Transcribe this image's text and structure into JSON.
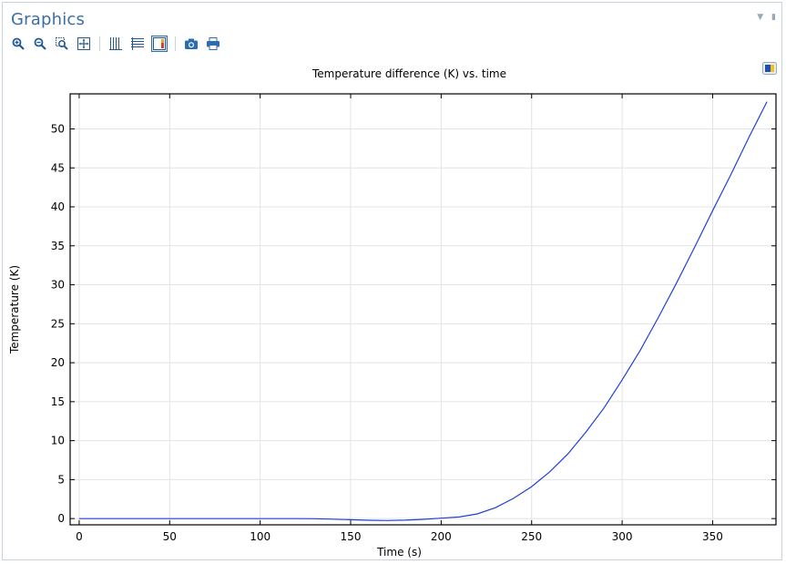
{
  "panel": {
    "title": "Graphics"
  },
  "toolbar": {
    "buttons": [
      {
        "name": "zoom-in-icon"
      },
      {
        "name": "zoom-out-icon"
      },
      {
        "name": "zoom-box-icon"
      },
      {
        "name": "zoom-extents-icon"
      },
      {
        "name": "show-grid-icon"
      },
      {
        "name": "show-axes-icon"
      },
      {
        "name": "show-legends-icon"
      },
      {
        "name": "camera-icon"
      },
      {
        "name": "print-icon"
      }
    ],
    "active_button": "show-legends-icon"
  },
  "colors": {
    "accent": "#3a6ea5",
    "line": "#1f3fdb",
    "grid": "#e3e3e3"
  },
  "chart_data": {
    "type": "line",
    "title": "Temperature difference (K) vs. time",
    "xlabel": "Time (s)",
    "ylabel": "Temperature (K)",
    "xlim": [
      -5,
      385
    ],
    "ylim": [
      -0.8,
      54.5
    ],
    "xticks": [
      0,
      50,
      100,
      150,
      200,
      250,
      300,
      350
    ],
    "yticks": [
      0,
      5,
      10,
      15,
      20,
      25,
      30,
      35,
      40,
      45,
      50
    ],
    "grid": true,
    "series": [
      {
        "x": [
          0,
          50,
          100,
          120,
          130,
          140,
          150,
          160,
          170,
          180,
          190,
          200,
          210,
          220,
          230,
          240,
          250,
          260,
          270,
          280,
          290,
          300,
          310,
          320,
          330,
          340,
          350,
          360,
          370,
          380
        ],
        "y": [
          0,
          0,
          0,
          0,
          -0.02,
          -0.08,
          -0.15,
          -0.22,
          -0.25,
          -0.2,
          -0.1,
          0.05,
          0.2,
          0.6,
          1.4,
          2.6,
          4.1,
          6.0,
          8.3,
          11.1,
          14.2,
          17.8,
          21.6,
          25.8,
          30.2,
          34.8,
          39.5,
          44.1,
          48.9,
          53.5
        ]
      }
    ]
  }
}
